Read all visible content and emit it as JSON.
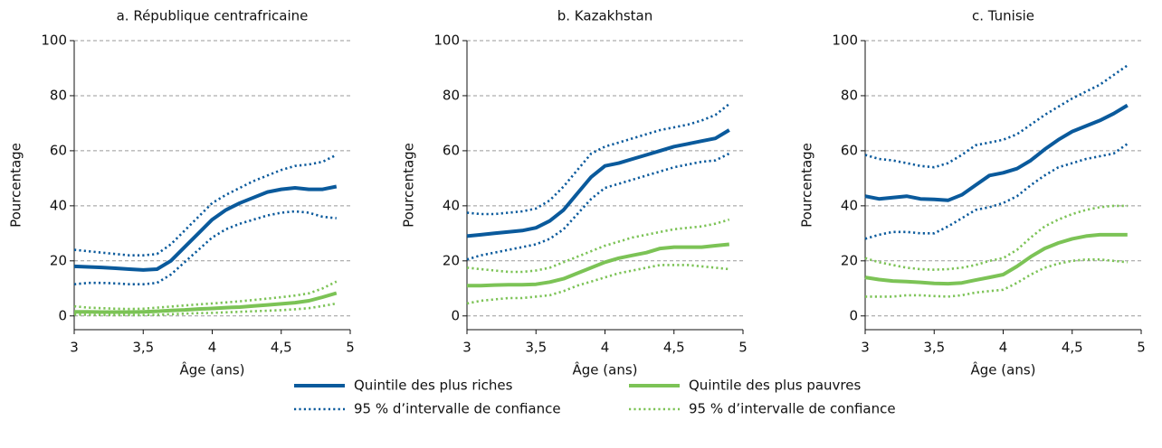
{
  "chart_data": [
    {
      "type": "line",
      "title": "a. République centrafricaine",
      "ylabel": "Pourcentage",
      "xlabel": "Âge (ans)",
      "xlim": [
        3,
        5
      ],
      "ylim": [
        -5,
        100
      ],
      "xticks": [
        3,
        {
          "value": 3.5,
          "label": "3,5"
        },
        4,
        {
          "value": 4.5,
          "label": "4,5"
        },
        5
      ],
      "yticks": [
        0,
        20,
        40,
        60,
        80,
        100
      ],
      "grid": true,
      "x": [
        3,
        3.1,
        3.2,
        3.3,
        3.4,
        3.5,
        3.6,
        3.7,
        3.8,
        3.9,
        4,
        4.1,
        4.2,
        4.3,
        4.4,
        4.5,
        4.6,
        4.7,
        4.8,
        4.9
      ],
      "series": [
        {
          "color": "#0a5a9c",
          "style": "solid",
          "values": [
            18,
            17.8,
            17.6,
            17.3,
            17,
            16.7,
            17,
            20,
            25,
            30,
            35,
            38.5,
            41,
            43,
            45,
            46,
            46.5,
            46,
            46,
            47
          ]
        },
        {
          "color": "#0a5a9c",
          "style": "dotted",
          "values": [
            24,
            23.5,
            23,
            22.5,
            22,
            22,
            22.5,
            26,
            31,
            36,
            41,
            44,
            46.5,
            49,
            51,
            53,
            54.5,
            55,
            56,
            58.5
          ]
        },
        {
          "color": "#0a5a9c",
          "style": "dotted",
          "values": [
            11.5,
            12,
            12,
            11.8,
            11.5,
            11.5,
            12,
            15,
            19.5,
            24,
            28.5,
            31.5,
            33.5,
            35,
            36.5,
            37.5,
            38,
            37.5,
            36,
            35.5
          ]
        },
        {
          "color": "#7cc356",
          "style": "solid",
          "values": [
            1.5,
            1.5,
            1.4,
            1.4,
            1.4,
            1.5,
            1.7,
            2,
            2.2,
            2.5,
            2.7,
            3,
            3.2,
            3.6,
            4,
            4.4,
            4.8,
            5.5,
            6.8,
            8.3
          ]
        },
        {
          "color": "#7cc356",
          "style": "dotted",
          "values": [
            3.5,
            3,
            2.8,
            2.6,
            2.5,
            2.6,
            3,
            3.4,
            3.8,
            4.2,
            4.5,
            4.9,
            5.3,
            5.8,
            6.3,
            6.8,
            7.4,
            8.2,
            10,
            12.5
          ]
        },
        {
          "color": "#7cc356",
          "style": "dotted",
          "values": [
            0.5,
            0.4,
            0.3,
            0.3,
            0.3,
            0.3,
            0.4,
            0.6,
            0.8,
            1,
            1.1,
            1.3,
            1.5,
            1.7,
            1.9,
            2.1,
            2.4,
            2.8,
            3.6,
            4.5
          ]
        }
      ]
    },
    {
      "type": "line",
      "title": "b. Kazakhstan",
      "ylabel": "Pourcentage",
      "xlabel": "Âge (ans)",
      "xlim": [
        3,
        5
      ],
      "ylim": [
        -5,
        100
      ],
      "xticks": [
        3,
        {
          "value": 3.5,
          "label": "3,5"
        },
        4,
        {
          "value": 4.5,
          "label": "4,5"
        },
        5
      ],
      "yticks": [
        0,
        20,
        40,
        60,
        80,
        100
      ],
      "grid": true,
      "x": [
        3,
        3.1,
        3.2,
        3.3,
        3.4,
        3.5,
        3.6,
        3.7,
        3.8,
        3.9,
        4,
        4.1,
        4.2,
        4.3,
        4.4,
        4.5,
        4.6,
        4.7,
        4.8,
        4.9
      ],
      "series": [
        {
          "color": "#0a5a9c",
          "style": "solid",
          "values": [
            29,
            29.5,
            30,
            30.5,
            31,
            32,
            34.5,
            38.5,
            44.5,
            50.5,
            54.5,
            55.5,
            57,
            58.5,
            60,
            61.5,
            62.5,
            63.5,
            64.5,
            67.5
          ]
        },
        {
          "color": "#0a5a9c",
          "style": "dotted",
          "values": [
            37.5,
            37,
            37,
            37.5,
            38,
            39,
            42,
            47,
            53,
            59,
            61.5,
            63,
            64.5,
            66,
            67.5,
            68.5,
            69.5,
            71,
            73,
            77
          ]
        },
        {
          "color": "#0a5a9c",
          "style": "dotted",
          "values": [
            20.5,
            22,
            23,
            24,
            25,
            26,
            28,
            31.5,
            37,
            42.5,
            46.5,
            48,
            49.5,
            51,
            52.5,
            54,
            55,
            56,
            56.5,
            59
          ]
        },
        {
          "color": "#7cc356",
          "style": "solid",
          "values": [
            11,
            11,
            11.2,
            11.3,
            11.3,
            11.5,
            12.3,
            13.5,
            15.5,
            17.5,
            19.5,
            21,
            22,
            23,
            24.5,
            25,
            25,
            25,
            25.5,
            26
          ]
        },
        {
          "color": "#7cc356",
          "style": "dotted",
          "values": [
            17.5,
            17,
            16.5,
            16,
            16,
            16.5,
            17.5,
            19.5,
            21.5,
            23.5,
            25.5,
            27,
            28.5,
            29.5,
            30.5,
            31.5,
            32,
            32.5,
            33.5,
            35
          ]
        },
        {
          "color": "#7cc356",
          "style": "dotted",
          "values": [
            4.5,
            5.5,
            6,
            6.5,
            6.5,
            7,
            7.5,
            9,
            11,
            12.5,
            14,
            15.5,
            16.5,
            17.5,
            18.5,
            18.5,
            18.5,
            18,
            17.5,
            17
          ]
        }
      ]
    },
    {
      "type": "line",
      "title": "c. Tunisie",
      "ylabel": "Pourcentage",
      "xlabel": "Âge (ans)",
      "xlim": [
        3,
        5
      ],
      "ylim": [
        -5,
        100
      ],
      "xticks": [
        3,
        {
          "value": 3.5,
          "label": "3,5"
        },
        4,
        {
          "value": 4.5,
          "label": "4,5"
        },
        5
      ],
      "yticks": [
        0,
        20,
        40,
        60,
        80,
        100
      ],
      "grid": true,
      "x": [
        3,
        3.1,
        3.2,
        3.3,
        3.4,
        3.5,
        3.6,
        3.7,
        3.8,
        3.9,
        4,
        4.1,
        4.2,
        4.3,
        4.4,
        4.5,
        4.6,
        4.7,
        4.8,
        4.9
      ],
      "series": [
        {
          "color": "#0a5a9c",
          "style": "solid",
          "values": [
            43.5,
            42.5,
            43,
            43.5,
            42.5,
            42.3,
            42,
            44,
            47.5,
            51,
            52,
            53.5,
            56.5,
            60.5,
            64,
            67,
            69,
            71,
            73.5,
            76.5
          ]
        },
        {
          "color": "#0a5a9c",
          "style": "dotted",
          "values": [
            58.5,
            57,
            56.5,
            55.5,
            54.5,
            54,
            55.5,
            58.5,
            62,
            63,
            64,
            66,
            69.5,
            73,
            76,
            79,
            81.5,
            84,
            87.5,
            91
          ]
        },
        {
          "color": "#0a5a9c",
          "style": "dotted",
          "values": [
            28,
            29.5,
            30.5,
            30.5,
            30,
            30,
            32.5,
            35.5,
            38.5,
            39.5,
            41,
            43.5,
            47.5,
            51,
            54,
            55.5,
            57,
            58,
            59,
            62.5
          ]
        },
        {
          "color": "#7cc356",
          "style": "solid",
          "values": [
            14,
            13.2,
            12.7,
            12.5,
            12.2,
            11.8,
            11.7,
            12,
            13,
            14,
            15,
            18,
            21.5,
            24.5,
            26.5,
            28,
            29,
            29.5,
            29.5,
            29.5
          ]
        },
        {
          "color": "#7cc356",
          "style": "dotted",
          "values": [
            21,
            19.5,
            18.5,
            17.5,
            17,
            16.8,
            17,
            17.5,
            18.5,
            20,
            21,
            24,
            28.5,
            32.5,
            35,
            37,
            38.5,
            39.5,
            40,
            40
          ]
        },
        {
          "color": "#7cc356",
          "style": "dotted",
          "values": [
            7,
            7,
            7,
            7.5,
            7.5,
            7.2,
            7,
            7.5,
            8.5,
            9,
            9.5,
            12,
            15,
            17.5,
            19,
            20,
            20.5,
            20.5,
            20,
            19.5
          ]
        }
      ]
    }
  ],
  "legend": [
    {
      "name": "Quintile des plus riches",
      "color": "#0a5a9c",
      "style": "solid"
    },
    {
      "name": "Quintile des plus pauvres",
      "color": "#7cc356",
      "style": "solid"
    },
    {
      "name": "95 % d’intervalle de confiance",
      "color": "#0a5a9c",
      "style": "dotted"
    },
    {
      "name": "95 % d’intervalle de confiance",
      "color": "#7cc356",
      "style": "dotted"
    }
  ]
}
